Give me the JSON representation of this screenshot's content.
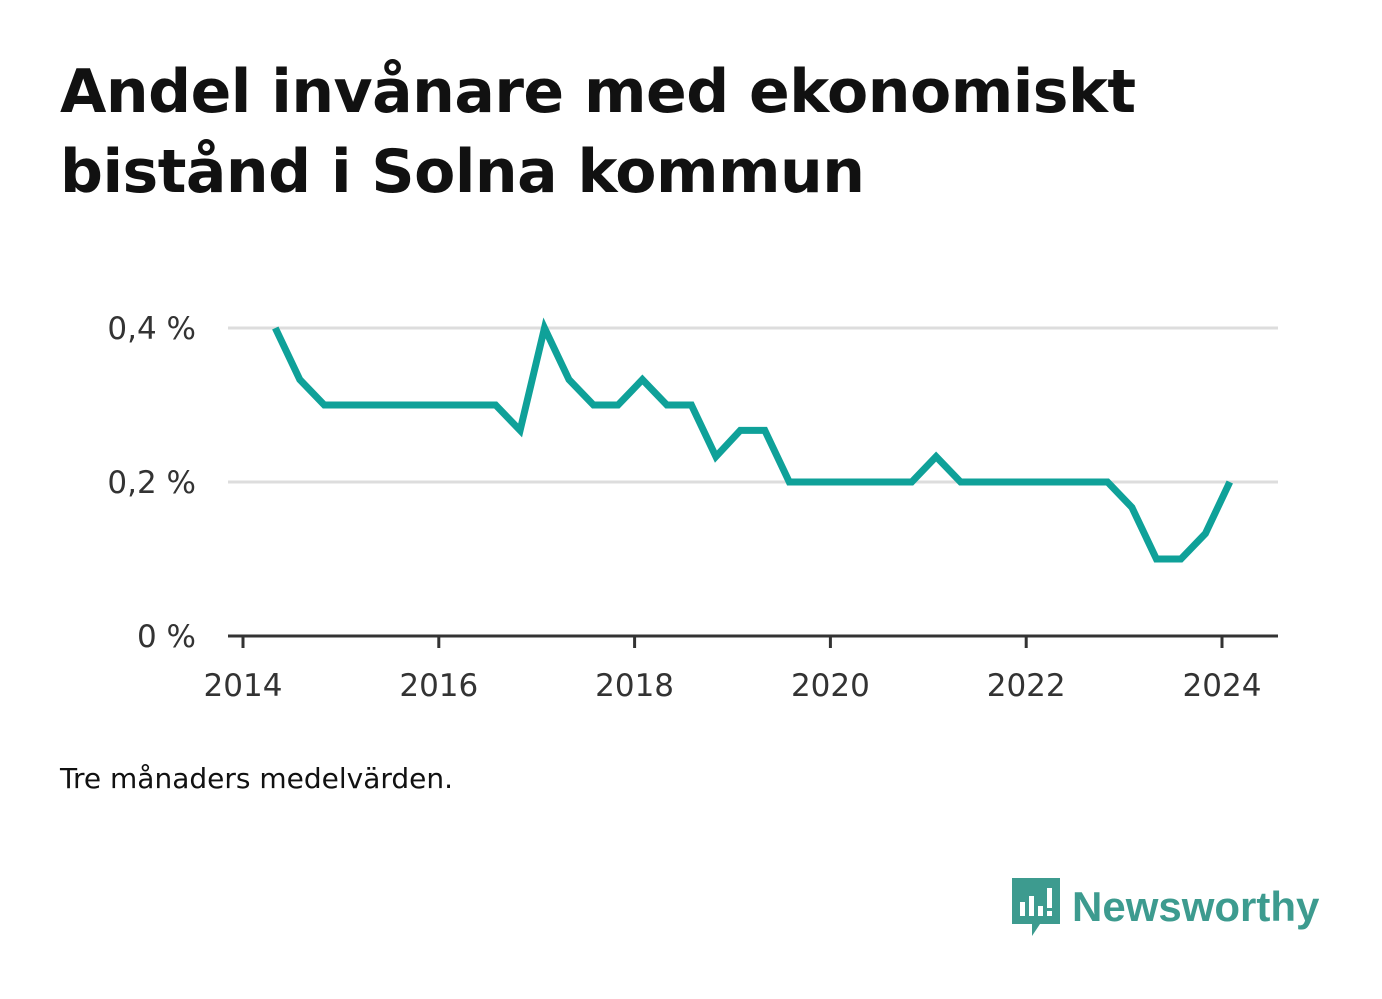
{
  "title": "Andel invånare med ekonomiskt bistånd i Solna kommun",
  "note": "Tre månaders medelvärden.",
  "brand": {
    "name": "Newsworthy",
    "icon": "newsworthy-logo-icon",
    "color": "#3d9b8f"
  },
  "colors": {
    "line": "#0fa199",
    "grid": "#dddddd",
    "axis": "#333333"
  },
  "chart_data": {
    "type": "line",
    "title": "Andel invånare med ekonomiskt bistånd i Solna kommun",
    "xlabel": "",
    "ylabel": "",
    "xlim": [
      2014,
      2024.6
    ],
    "ylim": [
      0,
      0.4
    ],
    "x_ticks": [
      2014,
      2016,
      2018,
      2020,
      2022,
      2024
    ],
    "y_ticks": [
      0,
      0.2,
      0.4
    ],
    "y_tick_labels": [
      "0 %",
      "0,2 %",
      "0,4 %"
    ],
    "grid": true,
    "series": [
      {
        "name": "",
        "color": "#0fa199",
        "x": [
          2014.33,
          2014.58,
          2014.83,
          2015.08,
          2015.33,
          2015.58,
          2015.83,
          2016.08,
          2016.33,
          2016.58,
          2016.83,
          2017.08,
          2017.33,
          2017.58,
          2017.83,
          2018.08,
          2018.33,
          2018.58,
          2018.83,
          2019.08,
          2019.33,
          2019.58,
          2019.83,
          2020.08,
          2020.33,
          2020.58,
          2020.83,
          2021.08,
          2021.33,
          2021.58,
          2021.83,
          2022.08,
          2022.33,
          2022.58,
          2022.83,
          2023.08,
          2023.33,
          2023.58,
          2023.83,
          2024.08
        ],
        "values": [
          0.4,
          0.333,
          0.3,
          0.3,
          0.3,
          0.3,
          0.3,
          0.3,
          0.3,
          0.3,
          0.267,
          0.4,
          0.333,
          0.3,
          0.3,
          0.333,
          0.3,
          0.3,
          0.233,
          0.267,
          0.267,
          0.2,
          0.2,
          0.2,
          0.2,
          0.2,
          0.2,
          0.233,
          0.2,
          0.2,
          0.2,
          0.2,
          0.2,
          0.2,
          0.2,
          0.167,
          0.1,
          0.1,
          0.133,
          0.2
        ]
      }
    ]
  }
}
